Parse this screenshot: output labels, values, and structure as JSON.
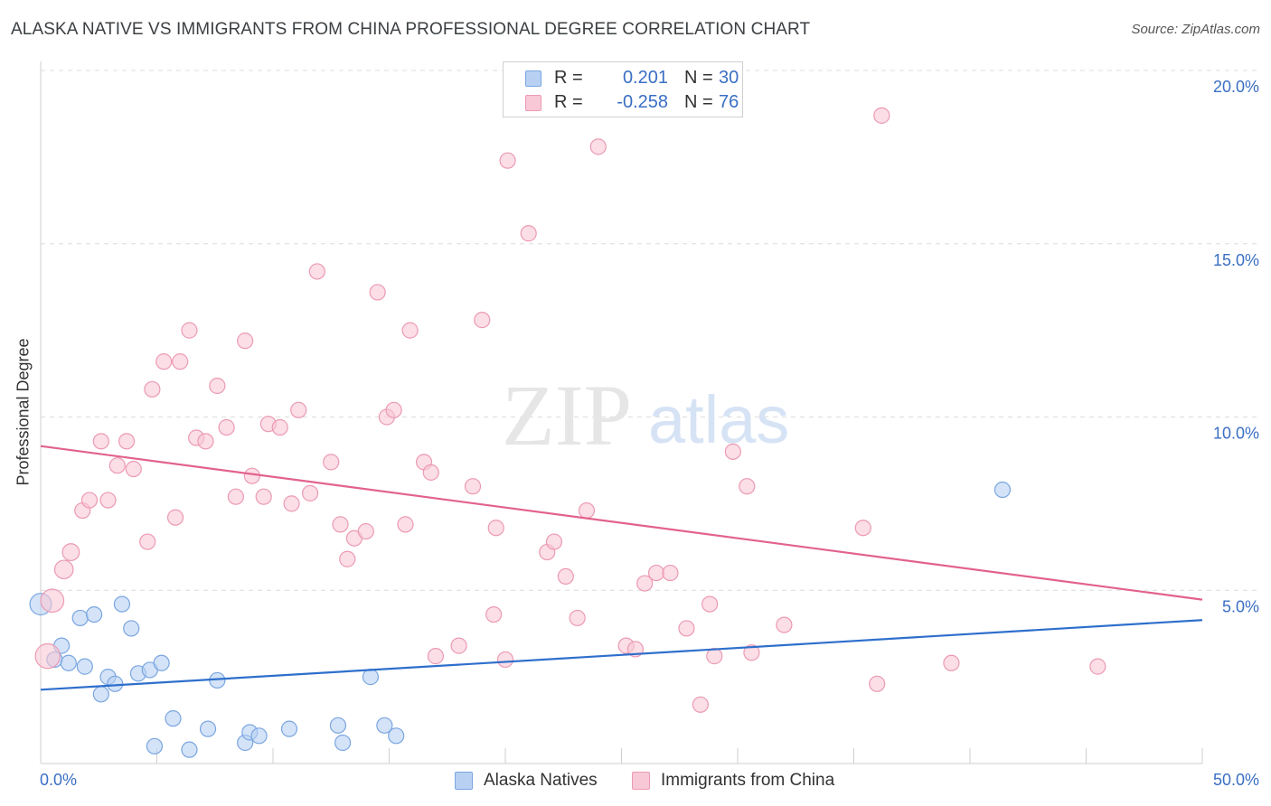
{
  "header": {
    "title": "ALASKA NATIVE VS IMMIGRANTS FROM CHINA PROFESSIONAL DEGREE CORRELATION CHART",
    "source": "Source: ZipAtlas.com"
  },
  "watermark": {
    "part1": "ZIP",
    "part2": "atlas"
  },
  "legend": {
    "r_label": "R =",
    "n_label": "N =",
    "rows": [
      {
        "r": "0.201",
        "n": "30"
      },
      {
        "r": "-0.258",
        "n": "76"
      }
    ]
  },
  "colors": {
    "blue_fill": "#b8d1f3",
    "blue_stroke": "#7aa6e0",
    "blue_line": "#2e6fcc",
    "pink_fill": "#f8c8d6",
    "pink_stroke": "#ec9ab3",
    "pink_line": "#e2628d",
    "tick_text": "#3a6fc4",
    "grid": "#dcdcdc"
  },
  "chart_data": {
    "type": "scatter",
    "title": "ALASKA NATIVE VS IMMIGRANTS FROM CHINA PROFESSIONAL DEGREE CORRELATION CHART",
    "xlabel": "",
    "ylabel": "Professional Degree",
    "xlim": [
      0,
      50
    ],
    "ylim": [
      0,
      20
    ],
    "x_tick_labels": [
      "0.0%",
      "50.0%"
    ],
    "y_ticks": [
      5,
      10,
      15,
      20
    ],
    "y_tick_labels": [
      "5.0%",
      "10.0%",
      "15.0%",
      "20.0%"
    ],
    "grid": true,
    "legend_position": "top-center",
    "series": [
      {
        "name": "Alaska Natives",
        "r": 0.201,
        "n": 30,
        "trend": {
          "x": [
            0,
            50
          ],
          "y": [
            2.13,
            4.14
          ]
        },
        "points": [
          [
            0,
            4.6,
            1.4
          ],
          [
            0.6,
            3.0,
            1
          ],
          [
            0.9,
            3.4,
            1
          ],
          [
            1.2,
            2.9,
            1
          ],
          [
            1.7,
            4.2,
            1
          ],
          [
            1.9,
            2.8,
            1
          ],
          [
            2.3,
            4.3,
            1
          ],
          [
            2.6,
            2.0,
            1
          ],
          [
            2.9,
            2.5,
            1
          ],
          [
            3.2,
            2.3,
            1
          ],
          [
            3.5,
            4.6,
            1
          ],
          [
            3.9,
            3.9,
            1
          ],
          [
            4.2,
            2.6,
            1
          ],
          [
            4.7,
            2.7,
            1
          ],
          [
            4.9,
            0.5,
            1
          ],
          [
            5.2,
            2.9,
            1
          ],
          [
            5.7,
            1.3,
            1
          ],
          [
            6.4,
            0.4,
            1
          ],
          [
            7.2,
            1.0,
            1
          ],
          [
            7.6,
            2.4,
            1
          ],
          [
            8.8,
            0.6,
            1
          ],
          [
            9.0,
            0.9,
            1
          ],
          [
            9.4,
            0.8,
            1
          ],
          [
            10.7,
            1.0,
            1
          ],
          [
            12.8,
            1.1,
            1
          ],
          [
            13.0,
            0.6,
            1
          ],
          [
            14.2,
            2.5,
            1
          ],
          [
            14.8,
            1.1,
            1
          ],
          [
            15.3,
            0.8,
            1
          ],
          [
            41.4,
            7.9,
            1
          ]
        ]
      },
      {
        "name": "Immigrants from China",
        "r": -0.258,
        "n": 76,
        "trend": {
          "x": [
            0,
            50
          ],
          "y": [
            9.16,
            4.73
          ]
        },
        "points": [
          [
            0.3,
            3.1,
            1.6
          ],
          [
            0.5,
            4.7,
            1.5
          ],
          [
            1.0,
            5.6,
            1.2
          ],
          [
            1.3,
            6.1,
            1.1
          ],
          [
            1.8,
            7.3,
            1
          ],
          [
            2.1,
            7.6,
            1
          ],
          [
            2.6,
            9.3,
            1
          ],
          [
            2.9,
            7.6,
            1
          ],
          [
            3.3,
            8.6,
            1
          ],
          [
            3.7,
            9.3,
            1
          ],
          [
            4.0,
            8.5,
            1
          ],
          [
            4.6,
            6.4,
            1
          ],
          [
            4.8,
            10.8,
            1
          ],
          [
            5.3,
            11.6,
            1
          ],
          [
            5.8,
            7.1,
            1
          ],
          [
            6.0,
            11.6,
            1
          ],
          [
            6.4,
            12.5,
            1
          ],
          [
            6.7,
            9.4,
            1
          ],
          [
            7.1,
            9.3,
            1
          ],
          [
            7.6,
            10.9,
            1
          ],
          [
            8.0,
            9.7,
            1
          ],
          [
            8.4,
            7.7,
            1
          ],
          [
            8.8,
            12.2,
            1
          ],
          [
            9.1,
            8.3,
            1
          ],
          [
            9.6,
            7.7,
            1
          ],
          [
            9.8,
            9.8,
            1
          ],
          [
            10.3,
            9.7,
            1
          ],
          [
            10.8,
            7.5,
            1
          ],
          [
            11.1,
            10.2,
            1
          ],
          [
            11.6,
            7.8,
            1
          ],
          [
            11.9,
            14.2,
            1
          ],
          [
            12.5,
            8.7,
            1
          ],
          [
            12.9,
            6.9,
            1
          ],
          [
            13.2,
            5.9,
            1
          ],
          [
            13.5,
            6.5,
            1
          ],
          [
            14.0,
            6.7,
            1
          ],
          [
            14.5,
            13.6,
            1
          ],
          [
            14.9,
            10.0,
            1
          ],
          [
            15.2,
            10.2,
            1
          ],
          [
            15.7,
            6.9,
            1
          ],
          [
            15.9,
            12.5,
            1
          ],
          [
            16.5,
            8.7,
            1
          ],
          [
            16.8,
            8.4,
            1
          ],
          [
            17.0,
            3.1,
            1
          ],
          [
            18.0,
            3.4,
            1
          ],
          [
            18.6,
            8.0,
            1
          ],
          [
            19.0,
            12.8,
            1
          ],
          [
            19.5,
            4.3,
            1
          ],
          [
            19.6,
            6.8,
            1
          ],
          [
            20.0,
            3.0,
            1
          ],
          [
            20.1,
            17.4,
            1
          ],
          [
            21.0,
            15.3,
            1
          ],
          [
            21.8,
            6.1,
            1
          ],
          [
            22.1,
            6.4,
            1
          ],
          [
            22.6,
            5.4,
            1
          ],
          [
            23.1,
            4.2,
            1
          ],
          [
            23.5,
            7.3,
            1
          ],
          [
            24.0,
            17.8,
            1
          ],
          [
            25.2,
            3.4,
            1
          ],
          [
            25.6,
            3.3,
            1
          ],
          [
            26.0,
            5.2,
            1
          ],
          [
            26.5,
            5.5,
            1
          ],
          [
            27.1,
            5.5,
            1
          ],
          [
            27.8,
            3.9,
            1
          ],
          [
            28.4,
            1.7,
            1
          ],
          [
            28.8,
            4.6,
            1
          ],
          [
            29.0,
            3.1,
            1
          ],
          [
            29.8,
            9.0,
            1
          ],
          [
            30.4,
            8.0,
            1
          ],
          [
            30.6,
            3.2,
            1
          ],
          [
            32.0,
            4.0,
            1
          ],
          [
            35.4,
            6.8,
            1
          ],
          [
            36.0,
            2.3,
            1
          ],
          [
            36.2,
            18.7,
            1
          ],
          [
            39.2,
            2.9,
            1
          ],
          [
            45.5,
            2.8,
            1
          ]
        ]
      }
    ]
  }
}
